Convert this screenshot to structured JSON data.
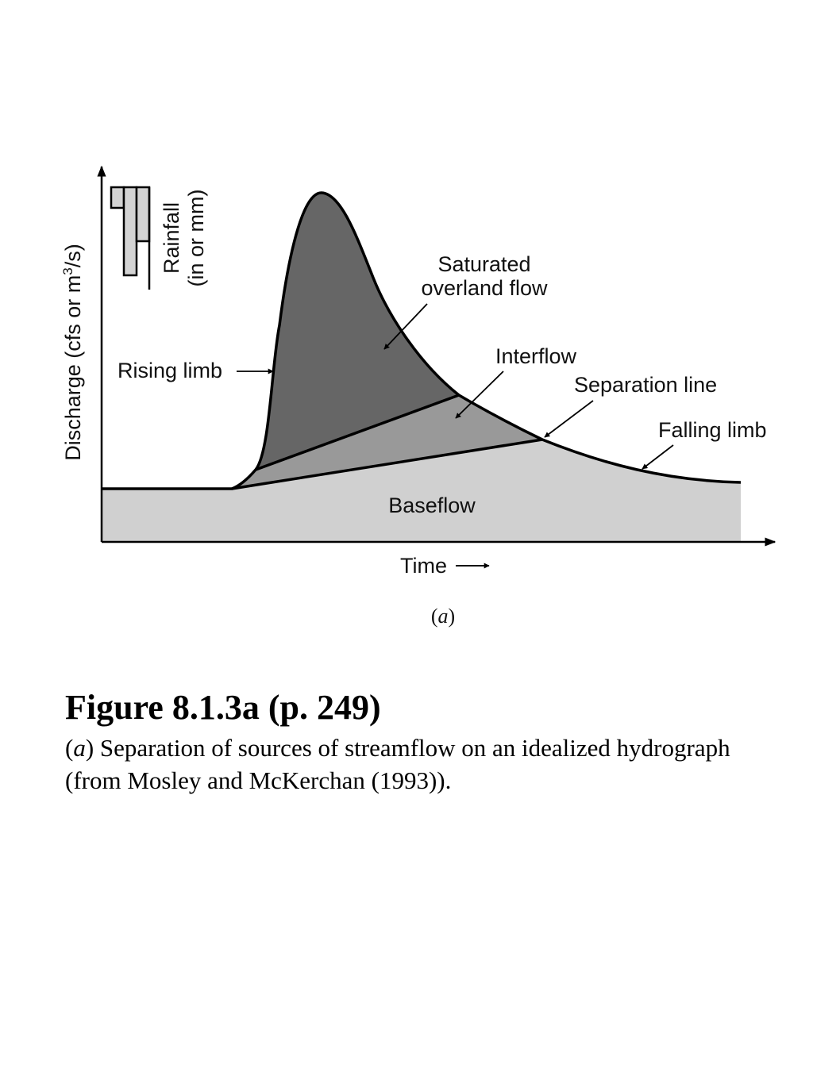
{
  "diagram": {
    "y_axis_label": "Discharge (cfs or m",
    "y_axis_label_sup": "3",
    "y_axis_label_end": "/s)",
    "x_axis_label": "Time",
    "rainfall_label_line1": "Rainfall",
    "rainfall_label_line2": "(in or mm)",
    "regions": {
      "saturated_overland_flow_line1": "Saturated",
      "saturated_overland_flow_line2": "overland flow",
      "interflow": "Interflow",
      "baseflow": "Baseflow"
    },
    "annotations": {
      "rising_limb": "Rising limb",
      "separation_line": "Separation line",
      "falling_limb": "Falling limb"
    },
    "subfigure_letter": "a",
    "colors": {
      "overland_flow": "#666666",
      "interflow": "#999999",
      "baseflow": "#d0d0d0",
      "rainfall_bars": "#d3d3d3",
      "outline": "#000000"
    }
  },
  "caption": {
    "title": "Figure 8.1.3a  (p. 249)",
    "text_letter": "a",
    "text": " Separation of sources of streamflow on an idealized hydrograph (from Mosley and McKerchan (1993))."
  }
}
